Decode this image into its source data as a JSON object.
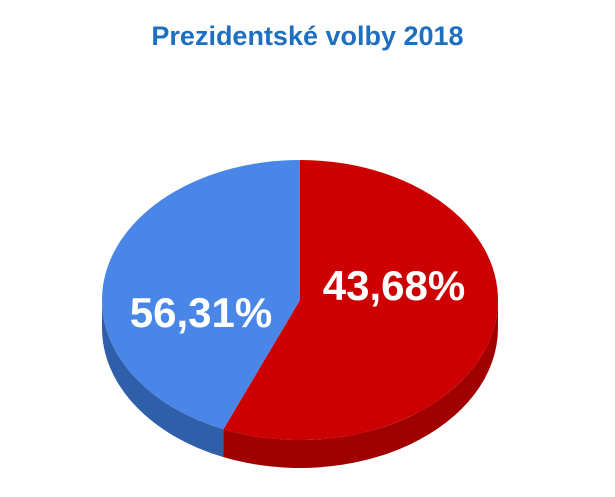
{
  "chart_data": {
    "type": "pie",
    "title": "Prezidentské volby 2018",
    "slices": [
      {
        "label": "56,31%",
        "value": 56.31,
        "color": "#cc0000",
        "side_color": "#a10000",
        "portrait": "portrait-left"
      },
      {
        "label": "43,68%",
        "value": 43.68,
        "color": "#4a86e8",
        "side_color": "#2f5fa8",
        "portrait": "portrait-right"
      }
    ]
  }
}
